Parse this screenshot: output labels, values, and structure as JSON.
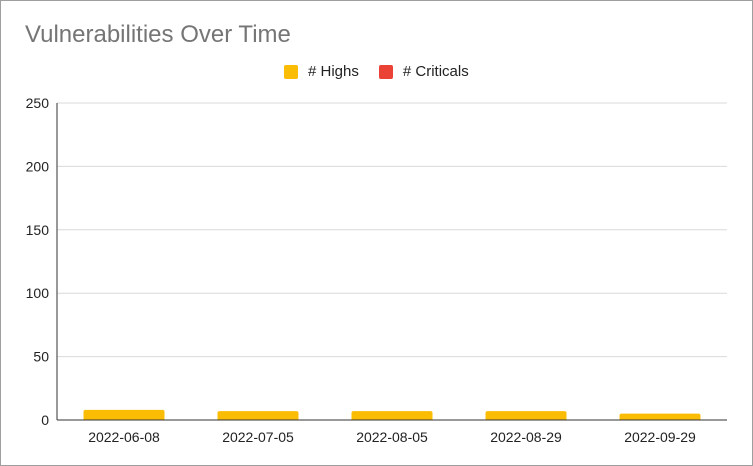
{
  "chart_data": {
    "type": "bar",
    "title": "Vulnerabilities Over Time",
    "categories": [
      "2022-06-08",
      "2022-07-05",
      "2022-08-05",
      "2022-08-29",
      "2022-09-29"
    ],
    "series": [
      {
        "name": "# Highs",
        "color": "#FBBC04",
        "values": [
          8,
          7,
          7,
          7,
          5
        ]
      },
      {
        "name": "# Criticals",
        "color": "#EA4335",
        "values": [
          0,
          0,
          0,
          0,
          0
        ]
      }
    ],
    "xlabel": "",
    "ylabel": "",
    "ylim": [
      0,
      250
    ],
    "yticks": [
      0,
      50,
      100,
      150,
      200,
      250
    ],
    "grid": true,
    "legend_position": "top"
  }
}
